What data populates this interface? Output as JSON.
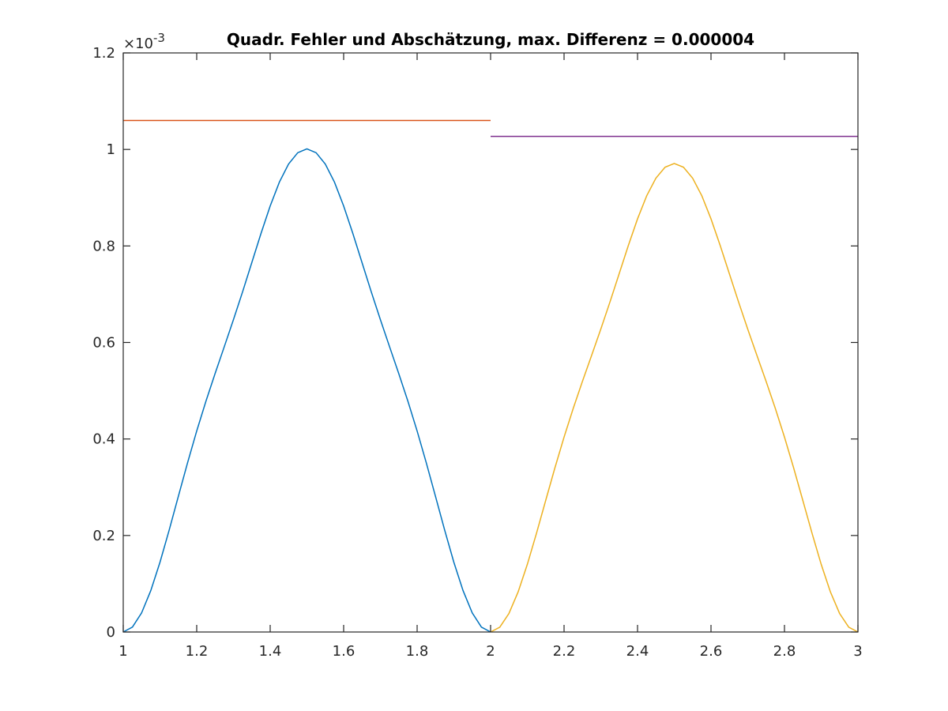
{
  "chart_data": {
    "type": "line",
    "title": "Quadr. Fehler und Abschätzung, max. Differenz = 0.000004",
    "xlabel": "",
    "ylabel": "",
    "xlim": [
      1,
      3
    ],
    "ylim": [
      0,
      1.2
    ],
    "y_exponent_label": "×10",
    "y_exponent_power": "-3",
    "xticks": [
      1,
      1.2,
      1.4,
      1.6,
      1.8,
      2,
      2.2,
      2.4,
      2.6,
      2.8,
      3
    ],
    "xtick_labels": [
      "1",
      "1.2",
      "1.4",
      "1.6",
      "1.8",
      "2",
      "2.2",
      "2.4",
      "2.6",
      "2.8",
      "3"
    ],
    "yticks": [
      0,
      0.2,
      0.4,
      0.6,
      0.8,
      1,
      1.2
    ],
    "ytick_labels": [
      "0",
      "0.2",
      "0.4",
      "0.6",
      "0.8",
      "1",
      "1.2"
    ],
    "grid": false,
    "legend": "none",
    "series": [
      {
        "color": "#0072bd",
        "x": [
          1.0,
          1.025,
          1.05,
          1.075,
          1.1,
          1.125,
          1.15,
          1.175,
          1.2,
          1.225,
          1.25,
          1.275,
          1.3,
          1.325,
          1.35,
          1.375,
          1.4,
          1.425,
          1.45,
          1.475,
          1.5,
          1.525,
          1.55,
          1.575,
          1.6,
          1.625,
          1.65,
          1.675,
          1.7,
          1.725,
          1.75,
          1.775,
          1.8,
          1.825,
          1.85,
          1.875,
          1.9,
          1.925,
          1.95,
          1.975,
          2.0
        ],
        "y": [
          0,
          0.0102,
          0.0397,
          0.0858,
          0.1445,
          0.2111,
          0.2811,
          0.3505,
          0.4165,
          0.478,
          0.5355,
          0.5911,
          0.6472,
          0.7053,
          0.7655,
          0.8259,
          0.8828,
          0.9322,
          0.9698,
          0.9932,
          1.0012,
          0.9932,
          0.9698,
          0.9322,
          0.8828,
          0.8259,
          0.7655,
          0.7053,
          0.6472,
          0.5911,
          0.5355,
          0.478,
          0.4165,
          0.3505,
          0.2811,
          0.2111,
          0.1445,
          0.0858,
          0.0397,
          0.0102,
          0
        ]
      },
      {
        "color": "#d95319",
        "x": [
          1,
          2
        ],
        "y": [
          1.06,
          1.06
        ]
      },
      {
        "color": "#edb120",
        "x": [
          2.0,
          2.025,
          2.05,
          2.075,
          2.1,
          2.125,
          2.15,
          2.175,
          2.2,
          2.225,
          2.25,
          2.275,
          2.3,
          2.325,
          2.35,
          2.375,
          2.4,
          2.425,
          2.45,
          2.475,
          2.5,
          2.525,
          2.55,
          2.575,
          2.6,
          2.625,
          2.65,
          2.675,
          2.7,
          2.725,
          2.75,
          2.775,
          2.8,
          2.825,
          2.85,
          2.875,
          2.9,
          2.925,
          2.95,
          2.975,
          3.0
        ],
        "y": [
          0,
          0.0099,
          0.0385,
          0.0832,
          0.1401,
          0.2047,
          0.2726,
          0.3399,
          0.4039,
          0.4635,
          0.5193,
          0.5732,
          0.6276,
          0.684,
          0.7424,
          0.8009,
          0.8561,
          0.904,
          0.9405,
          0.9632,
          0.971,
          0.9632,
          0.9405,
          0.904,
          0.8561,
          0.8009,
          0.7424,
          0.684,
          0.6276,
          0.5732,
          0.5193,
          0.4635,
          0.4039,
          0.3399,
          0.2726,
          0.2047,
          0.1401,
          0.0832,
          0.0385,
          0.0099,
          0
        ]
      },
      {
        "color": "#7e2f8e",
        "x": [
          2,
          3
        ],
        "y": [
          1.027,
          1.027
        ]
      }
    ]
  }
}
